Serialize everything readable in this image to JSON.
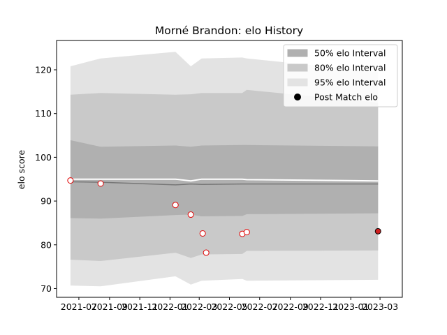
{
  "chart_data": {
    "type": "line",
    "title": "Morné Brandon: elo History",
    "xlabel": "",
    "ylabel": "elo score",
    "ylim": [
      68.0,
      126.7
    ],
    "xlim": [
      "2021-05-17",
      "2023-04-15"
    ],
    "y_ticks": [
      70,
      80,
      90,
      100,
      110,
      120
    ],
    "x_ticks": [
      "2021-07",
      "2021-09",
      "2021-11",
      "2022-01",
      "2022-03",
      "2022-05",
      "2022-07",
      "2022-09",
      "2022-11",
      "2023-01",
      "2023-03"
    ],
    "legend_position": "top-right",
    "grid": false,
    "colors": {
      "band_50": "#b0b0b0",
      "band_80": "#c9c9c9",
      "band_95": "#e3e3e3",
      "mean_line": "#ffffff",
      "median_line": "#777777",
      "point_edge": "#e00000",
      "point_fill": "#ffffff",
      "post_match_fill": "#d02020"
    },
    "legend": [
      {
        "label": "50% elo Interval",
        "kind": "band_50"
      },
      {
        "label": "80% elo Interval",
        "kind": "band_80"
      },
      {
        "label": "95% elo Interval",
        "kind": "band_95"
      },
      {
        "label": "Post Match elo",
        "kind": "post"
      }
    ],
    "bands": {
      "dates": [
        "2021-06-14",
        "2021-08-14",
        "2022-01-12",
        "2022-02-12",
        "2022-03-06",
        "2022-05-27",
        "2022-06-05",
        "2023-02-25"
      ],
      "band_95": {
        "upper": [
          120.8,
          122.6,
          124.1,
          120.8,
          122.6,
          122.8,
          122.6,
          119.5
        ],
        "lower": [
          70.7,
          70.5,
          72.8,
          70.9,
          71.8,
          72.2,
          71.8,
          72.0
        ]
      },
      "band_80": {
        "upper": [
          114.3,
          114.7,
          114.3,
          114.4,
          114.7,
          114.7,
          115.4,
          112.5
        ],
        "lower": [
          76.6,
          76.3,
          78.2,
          77.0,
          77.8,
          77.9,
          78.6,
          78.7
        ]
      },
      "band_50": {
        "upper": [
          103.9,
          102.4,
          102.7,
          102.4,
          102.7,
          102.8,
          102.8,
          102.5
        ],
        "lower": [
          86.1,
          86.0,
          86.8,
          86.9,
          86.5,
          86.6,
          87.0,
          87.2
        ]
      },
      "mean": [
        95.0,
        95.0,
        95.0,
        94.6,
        95.0,
        95.0,
        94.9,
        94.6
      ],
      "median": [
        94.4,
        94.3,
        93.7,
        93.9,
        93.8,
        93.9,
        93.9,
        93.9
      ]
    },
    "series": [
      {
        "kind": "points",
        "points": [
          {
            "x": "2021-06-14",
            "y": 94.7
          },
          {
            "x": "2021-08-14",
            "y": 94.0
          },
          {
            "x": "2022-01-12",
            "y": 89.1
          },
          {
            "x": "2022-02-12",
            "y": 86.9
          },
          {
            "x": "2022-03-08",
            "y": 82.6
          },
          {
            "x": "2022-03-15",
            "y": 78.2
          },
          {
            "x": "2022-05-27",
            "y": 82.5
          },
          {
            "x": "2022-06-05",
            "y": 82.9
          }
        ]
      },
      {
        "name": "Post Match elo",
        "kind": "post",
        "points": [
          {
            "x": "2023-02-25",
            "y": 83.1
          }
        ]
      }
    ]
  }
}
